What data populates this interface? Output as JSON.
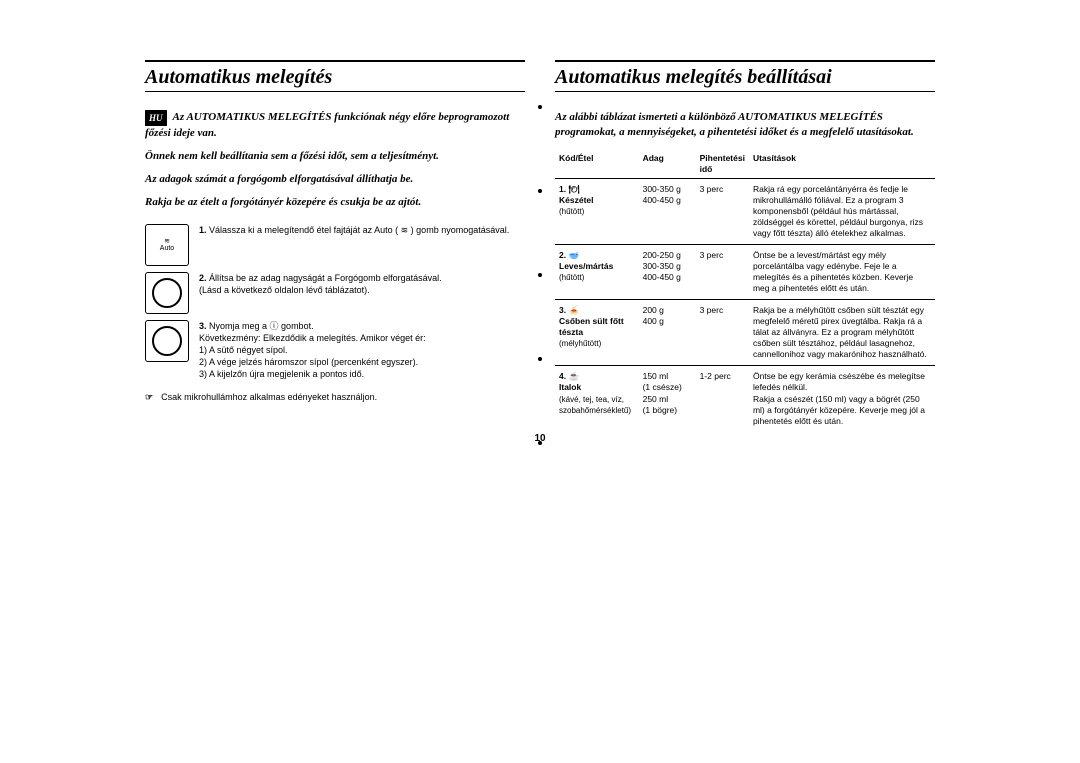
{
  "pageNumber": "10",
  "langBadge": "HU",
  "left": {
    "title": "Automatikus melegítés",
    "introLines": [
      "Az AUTOMATIKUS MELEGÍTÉS funkciónak négy előre beprogramozott főzési ideje van.",
      "Önnek nem kell beállítania sem a főzési időt, sem a teljesítményt.",
      "Az adagok számát a forgógomb elforgatásával állíthatja be.",
      "Rakja be az ételt a forgótányér közepére és csukja be az ajtót."
    ],
    "steps": [
      {
        "num": "1.",
        "text": "Válassza ki a melegítendő étel fajtáját az Auto ( ≋ ) gomb nyomogatásával.",
        "iconLabel": "≋\nAuto"
      },
      {
        "num": "2.",
        "text": "Állítsa be az adag nagyságát a Forgógomb elforgatásával.\n(Lásd a következő oldalon lévő táblázatot).",
        "iconType": "dial"
      },
      {
        "num": "3.",
        "text": "Nyomja meg a  ⓘ  gombot.\nKövetkezmény: Elkezdődik a melegítés. Amikor véget ér:\n1)  A sütő négyet sípol.\n2)  A vége jelzés háromszor sípol (percenként egyszer).\n3)  A kijelzőn újra megjelenik a pontos idő.",
        "iconType": "dial"
      }
    ],
    "footnote": {
      "mark": "☞",
      "text": "Csak mikrohullámhoz alkalmas edényeket használjon."
    }
  },
  "right": {
    "title": "Automatikus melegítés beállításai",
    "intro": "Az alábbi táblázat ismerteti a különböző AUTOMATIKUS MELEGÍTÉS programokat, a mennyiségeket, a pihentetési időket és a megfelelő utasításokat.",
    "headers": [
      "Kód/Étel",
      "Adag",
      "Pihentetési idő",
      "Utasítások"
    ],
    "rows": [
      {
        "codeNum": "1.",
        "icon": "🍽",
        "name": "Készétel",
        "note": "(hűtött)",
        "adag": "300-350 g\n400-450 g",
        "ido": "3 perc",
        "utas": "Rakja rá egy porcelántányérra és fedje le mikrohullámálló fóliával. Ez a program 3 komponensből (például hús mártással, zöldséggel és körettel, például burgonya, rizs vagy főtt tészta) álló ételekhez alkalmas."
      },
      {
        "codeNum": "2.",
        "icon": "🥣",
        "name": "Leves/mártás",
        "note": "(hűtött)",
        "adag": "200-250 g\n300-350 g\n400-450 g",
        "ido": "3 perc",
        "utas": "Öntse be a levest/mártást egy mély porcelántálba vagy edénybe. Feje le a melegítés és a pihentetés közben. Keverje meg a pihentetés előtt és után."
      },
      {
        "codeNum": "3.",
        "icon": "🍝",
        "name": "Csőben sült főtt tészta",
        "note": "(mélyhűtött)",
        "adag": "200 g\n400 g",
        "ido": "3 perc",
        "utas": "Rakja be a mélyhűtött csőben sült tésztát egy megfelelő méretű pirex üvegtálba. Rakja rá a tálat az állványra. Ez a program mélyhűtött csőben sült tésztához, például lasagnehoz, cannellonihoz vagy makarónihoz használható."
      },
      {
        "codeNum": "4.",
        "icon": "☕",
        "name": "Italok",
        "note": "(kávé, tej, tea, víz, szobahőmérsékletű)",
        "adag": "150 ml\n(1 csésze)\n250 ml\n(1 bögre)",
        "ido": "1-2 perc",
        "utas": "Öntse be egy kerámia csészébe és melegítse lefedés nélkül.\nRakja a csészét (150 ml) vagy a bögrét (250 ml) a forgótányér közepére. Keverje meg jól a pihentetés előtt és után."
      }
    ]
  }
}
